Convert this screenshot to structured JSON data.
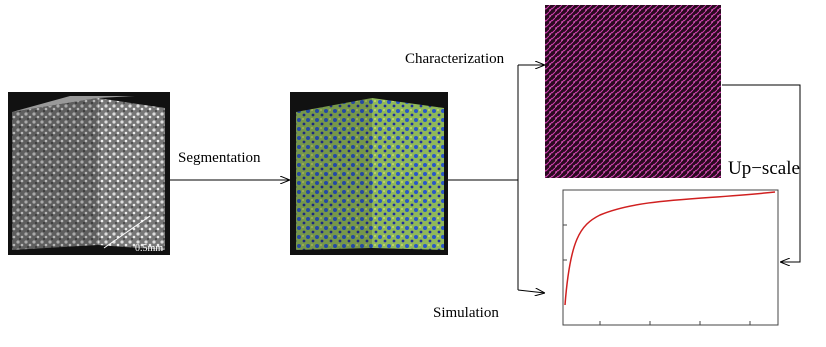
{
  "labels": {
    "segmentation": "Segmentation",
    "characterization": "Characterization",
    "upscale": "Up−scale",
    "simulation": "Simulation",
    "scale_bar": "0.5mm"
  }
}
